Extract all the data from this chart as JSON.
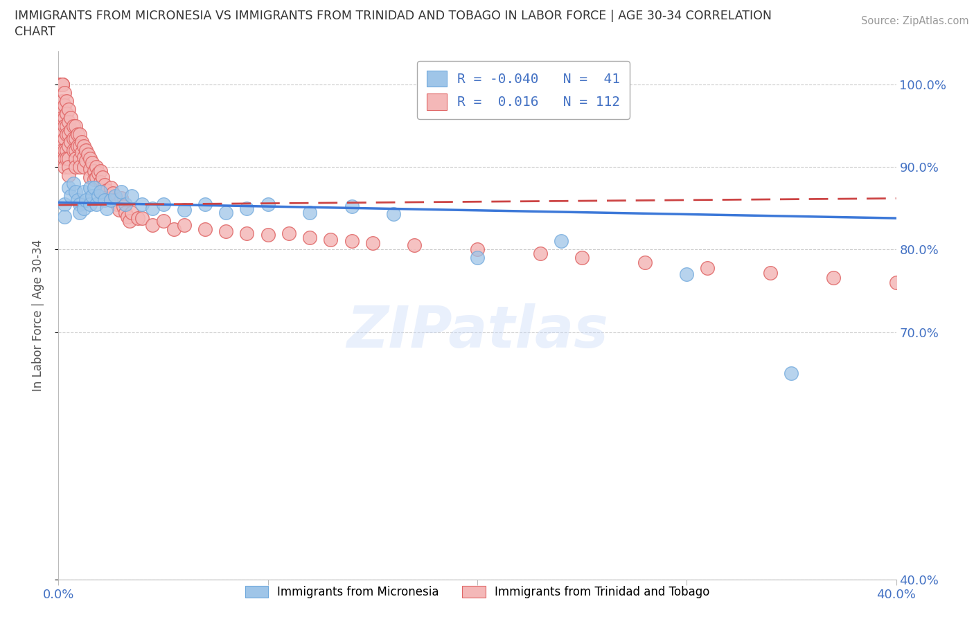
{
  "title_line1": "IMMIGRANTS FROM MICRONESIA VS IMMIGRANTS FROM TRINIDAD AND TOBAGO IN LABOR FORCE | AGE 30-34 CORRELATION",
  "title_line2": "CHART",
  "source": "Source: ZipAtlas.com",
  "ylabel": "In Labor Force | Age 30-34",
  "xlim": [
    0.0,
    0.4
  ],
  "ylim": [
    0.4,
    1.04
  ],
  "xtick_vals": [
    0.0,
    0.1,
    0.2,
    0.3,
    0.4
  ],
  "xticklabels": [
    "0.0%",
    "",
    "",
    "",
    "40.0%"
  ],
  "ytick_vals": [
    0.4,
    0.7,
    0.8,
    0.9,
    1.0
  ],
  "yticklabels": [
    "40.0%",
    "70.0%",
    "80.0%",
    "90.0%",
    "100.0%"
  ],
  "color_micronesia": "#9fc5e8",
  "color_tt": "#e06666",
  "color_tt_light": "#f4b8b8",
  "trendline_color_micronesia": "#3c78d8",
  "trendline_color_tt": "#cc4444",
  "R_micronesia": -0.04,
  "N_micronesia": 41,
  "R_tt": 0.016,
  "N_tt": 112,
  "watermark": "ZIPatlas",
  "legend_label_micronesia": "Immigrants from Micronesia",
  "legend_label_tt": "Immigrants from Trinidad and Tobago",
  "mic_trend_x0": 0.0,
  "mic_trend_y0": 0.857,
  "mic_trend_x1": 0.4,
  "mic_trend_y1": 0.838,
  "tt_trend_x0": 0.0,
  "tt_trend_y0": 0.854,
  "tt_trend_x1": 0.4,
  "tt_trend_y1": 0.862,
  "micronesia_x": [
    0.003,
    0.003,
    0.005,
    0.006,
    0.007,
    0.008,
    0.009,
    0.01,
    0.01,
    0.012,
    0.012,
    0.013,
    0.015,
    0.015,
    0.016,
    0.017,
    0.018,
    0.019,
    0.02,
    0.022,
    0.023,
    0.025,
    0.027,
    0.03,
    0.032,
    0.035,
    0.04,
    0.045,
    0.05,
    0.06,
    0.07,
    0.08,
    0.09,
    0.1,
    0.12,
    0.14,
    0.16,
    0.2,
    0.24,
    0.3,
    0.35
  ],
  "micronesia_y": [
    0.855,
    0.84,
    0.875,
    0.865,
    0.88,
    0.87,
    0.86,
    0.855,
    0.845,
    0.87,
    0.85,
    0.86,
    0.875,
    0.855,
    0.865,
    0.875,
    0.855,
    0.865,
    0.87,
    0.86,
    0.85,
    0.86,
    0.865,
    0.87,
    0.855,
    0.865,
    0.855,
    0.85,
    0.855,
    0.848,
    0.855,
    0.845,
    0.85,
    0.855,
    0.845,
    0.852,
    0.843,
    0.79,
    0.81,
    0.77,
    0.65
  ],
  "tt_x": [
    0.001,
    0.001,
    0.001,
    0.001,
    0.001,
    0.002,
    0.002,
    0.002,
    0.002,
    0.002,
    0.002,
    0.002,
    0.002,
    0.002,
    0.003,
    0.003,
    0.003,
    0.003,
    0.003,
    0.003,
    0.003,
    0.003,
    0.004,
    0.004,
    0.004,
    0.004,
    0.004,
    0.004,
    0.005,
    0.005,
    0.005,
    0.005,
    0.005,
    0.005,
    0.005,
    0.006,
    0.006,
    0.006,
    0.007,
    0.007,
    0.007,
    0.008,
    0.008,
    0.008,
    0.008,
    0.008,
    0.009,
    0.009,
    0.01,
    0.01,
    0.01,
    0.01,
    0.011,
    0.011,
    0.012,
    0.012,
    0.012,
    0.013,
    0.013,
    0.014,
    0.015,
    0.015,
    0.015,
    0.016,
    0.017,
    0.017,
    0.018,
    0.018,
    0.019,
    0.02,
    0.02,
    0.02,
    0.021,
    0.022,
    0.023,
    0.024,
    0.025,
    0.025,
    0.026,
    0.027,
    0.028,
    0.029,
    0.03,
    0.031,
    0.032,
    0.033,
    0.034,
    0.035,
    0.038,
    0.04,
    0.045,
    0.05,
    0.055,
    0.06,
    0.07,
    0.08,
    0.09,
    0.1,
    0.11,
    0.12,
    0.13,
    0.14,
    0.15,
    0.17,
    0.2,
    0.23,
    0.25,
    0.28,
    0.31,
    0.34,
    0.37,
    0.4
  ],
  "tt_y": [
    1.0,
    1.0,
    1.0,
    1.0,
    1.0,
    1.0,
    1.0,
    1.0,
    0.98,
    0.97,
    0.96,
    0.94,
    0.93,
    0.92,
    0.99,
    0.975,
    0.96,
    0.95,
    0.935,
    0.92,
    0.91,
    0.9,
    0.98,
    0.965,
    0.95,
    0.94,
    0.92,
    0.91,
    0.97,
    0.955,
    0.94,
    0.925,
    0.91,
    0.9,
    0.89,
    0.96,
    0.945,
    0.93,
    0.95,
    0.935,
    0.92,
    0.95,
    0.935,
    0.92,
    0.91,
    0.9,
    0.94,
    0.925,
    0.94,
    0.925,
    0.91,
    0.9,
    0.93,
    0.918,
    0.925,
    0.912,
    0.9,
    0.92,
    0.908,
    0.915,
    0.91,
    0.898,
    0.888,
    0.905,
    0.895,
    0.885,
    0.9,
    0.888,
    0.893,
    0.895,
    0.882,
    0.87,
    0.888,
    0.878,
    0.872,
    0.865,
    0.875,
    0.862,
    0.868,
    0.86,
    0.855,
    0.848,
    0.862,
    0.852,
    0.845,
    0.84,
    0.835,
    0.845,
    0.838,
    0.838,
    0.83,
    0.835,
    0.825,
    0.83,
    0.825,
    0.822,
    0.82,
    0.818,
    0.82,
    0.815,
    0.812,
    0.81,
    0.808,
    0.805,
    0.8,
    0.795,
    0.79,
    0.784,
    0.778,
    0.772,
    0.766,
    0.76
  ],
  "tt_outlier_x": [
    0.32
  ],
  "tt_outlier_y": [
    0.766
  ],
  "tt_extra_low_x": [
    0.25
  ],
  "tt_extra_low_y": [
    0.79
  ]
}
